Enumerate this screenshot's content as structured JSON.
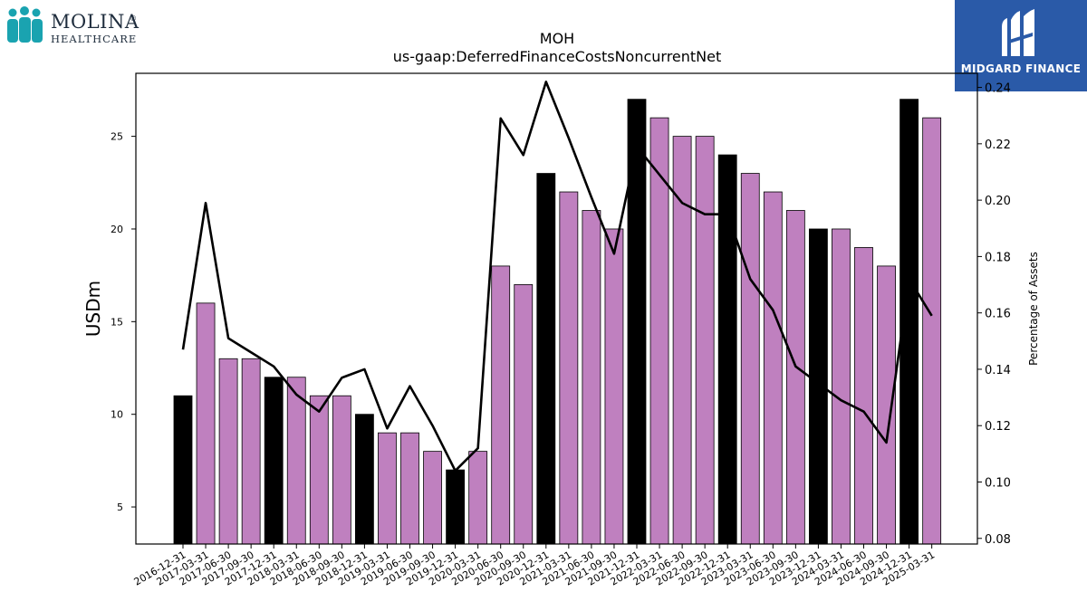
{
  "logos": {
    "left_name": "MOLINA",
    "left_mark": "®",
    "left_sub": "HEALTHCARE",
    "right_text": "MIDGARD FINANCE"
  },
  "chart_data": {
    "type": "bar",
    "title": "MOH",
    "subtitle": "us-gaap:DeferredFinanceCostsNoncurrentNet",
    "ylabel": "USDm",
    "y2label": "Percentage of Assets",
    "ylim": [
      3,
      28.4
    ],
    "y2lim": [
      0.078,
      0.245
    ],
    "yticks": [
      5,
      10,
      15,
      20,
      25
    ],
    "y2ticks": [
      0.08,
      0.1,
      0.12,
      0.14,
      0.16,
      0.18,
      0.2,
      0.22,
      0.24
    ],
    "colors": {
      "q4": "#000000",
      "other": "#bf80bf",
      "line": "#000000"
    },
    "categories": [
      "2016-12-31",
      "2017-03-31",
      "2017-06-30",
      "2017-09-30",
      "2017-12-31",
      "2018-03-31",
      "2018-06-30",
      "2018-09-30",
      "2018-12-31",
      "2019-03-31",
      "2019-06-30",
      "2019-09-30",
      "2019-12-31",
      "2020-03-31",
      "2020-06-30",
      "2020-09-30",
      "2020-12-31",
      "2021-03-31",
      "2021-06-30",
      "2021-09-30",
      "2021-12-31",
      "2022-03-31",
      "2022-06-30",
      "2022-09-30",
      "2022-12-31",
      "2023-03-31",
      "2023-06-30",
      "2023-09-30",
      "2023-12-31",
      "2024-03-31",
      "2024-06-30",
      "2024-09-30",
      "2024-12-31",
      "2025-03-31"
    ],
    "values": [
      11,
      16,
      13,
      13,
      12,
      12,
      11,
      11,
      10,
      9,
      9,
      8,
      7,
      8,
      18,
      17,
      23,
      22,
      21,
      20,
      27,
      26,
      25,
      25,
      24,
      23,
      22,
      21,
      20,
      20,
      19,
      18,
      27,
      26
    ],
    "series": [
      {
        "name": "Percentage of Assets",
        "values": [
          0.147,
          0.199,
          0.151,
          0.146,
          0.141,
          0.131,
          0.125,
          0.137,
          0.14,
          0.119,
          0.134,
          0.12,
          0.104,
          0.112,
          0.229,
          0.216,
          0.242,
          0.222,
          0.201,
          0.181,
          0.219,
          0.209,
          0.199,
          0.195,
          0.195,
          0.172,
          0.161,
          0.141,
          0.135,
          0.129,
          0.125,
          0.114,
          0.172,
          0.159
        ]
      }
    ]
  }
}
